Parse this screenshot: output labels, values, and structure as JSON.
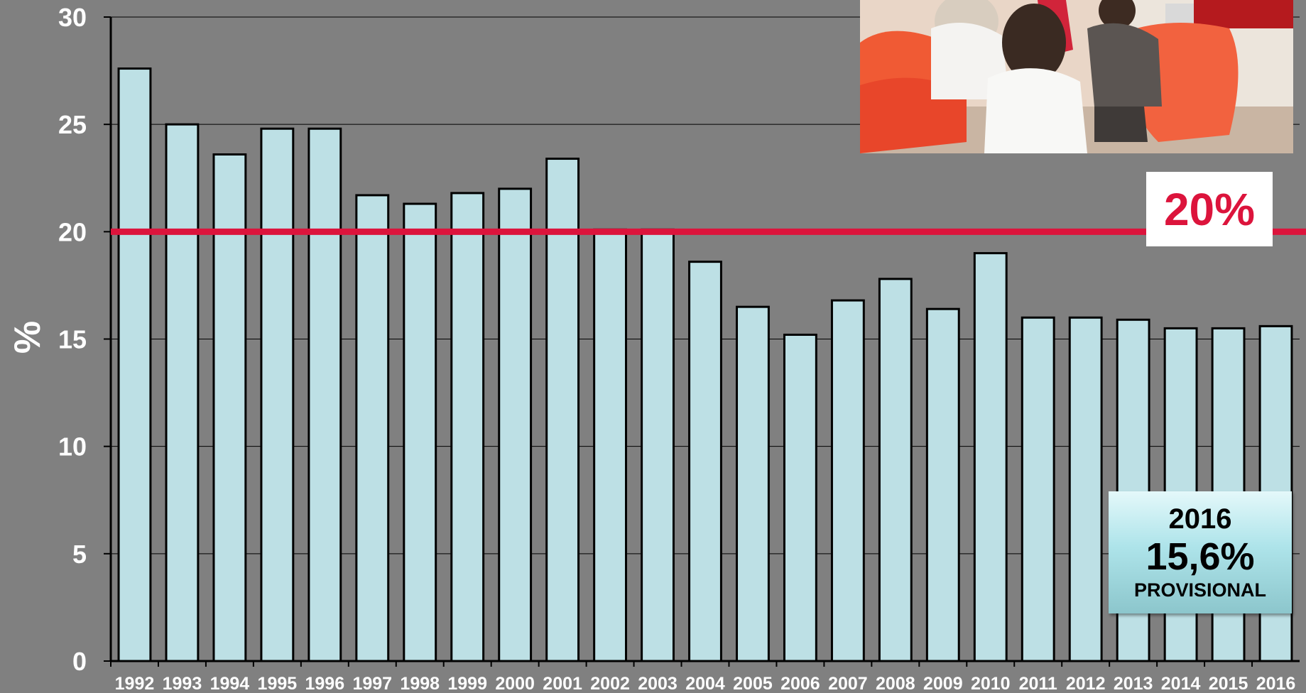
{
  "chart_data": {
    "type": "bar",
    "title": "",
    "xlabel": "",
    "ylabel": "%",
    "ylim": [
      0,
      30
    ],
    "yticks": [
      0,
      5,
      10,
      15,
      20,
      25,
      30
    ],
    "grid": true,
    "categories": [
      "1992",
      "1993",
      "1994",
      "1995",
      "1996",
      "1997",
      "1998",
      "1999",
      "2000",
      "2001",
      "2002",
      "2003",
      "2004",
      "2005",
      "2006",
      "2007",
      "2008",
      "2009",
      "2010",
      "2011",
      "2012",
      "2013",
      "2014",
      "2015",
      "2016"
    ],
    "values": [
      27.6,
      25.0,
      23.6,
      24.8,
      24.8,
      21.7,
      21.3,
      21.8,
      22.0,
      23.4,
      20.1,
      20.1,
      18.6,
      16.5,
      15.2,
      16.8,
      17.8,
      16.4,
      19.0,
      16.0,
      16.0,
      15.9,
      15.5,
      15.5,
      15.6
    ],
    "reference_line": {
      "value": 20,
      "label": "20%",
      "color": "#dc143c"
    },
    "bar_color": "#bde0e5",
    "annotation": {
      "year": "2016",
      "value": "15,6%",
      "note": "PROVISIONAL"
    }
  }
}
